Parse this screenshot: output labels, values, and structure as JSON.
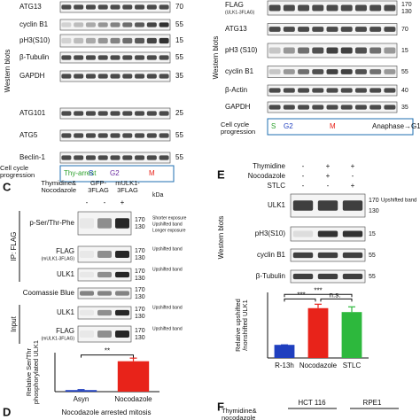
{
  "panel_a": {
    "side_label": "Western blots",
    "rows": [
      {
        "label": "ATG13",
        "kda": [
          70
        ]
      },
      {
        "label": "cyclin B1",
        "kda": [
          55
        ]
      },
      {
        "label": "pH3(S10)",
        "kda": [
          15
        ]
      },
      {
        "label": "β-Tubulin",
        "kda": [
          55
        ]
      },
      {
        "label": "GAPDH",
        "kda": [
          35
        ]
      },
      {
        "label": "ATG101",
        "kda": [
          25
        ]
      },
      {
        "label": "ATG5",
        "kda": [
          55
        ]
      },
      {
        "label": "Beclin-1",
        "kda": [
          55
        ]
      }
    ],
    "progression": {
      "label": "Cell cycle progression",
      "phases": [
        "Thy-arrest",
        "S",
        "G2",
        "M"
      ]
    }
  },
  "panel_b": {
    "side_label": "Western blots",
    "rows": [
      {
        "label": "FLAG",
        "sublabel": "(ULK1-3FLAG)",
        "kda": [
          170,
          130
        ]
      },
      {
        "label": "ATG13",
        "kda": [
          70
        ]
      },
      {
        "label": "pH3 (S10)",
        "kda": [
          15
        ]
      },
      {
        "label": "cyclin B1",
        "kda": [
          55
        ]
      },
      {
        "label": "β-Actin",
        "kda": [
          40
        ]
      },
      {
        "label": "GAPDH",
        "kda": [
          35
        ]
      }
    ],
    "progression": {
      "label": "Cell cycle progression",
      "phases": [
        "S",
        "G2",
        "M",
        "Anaphase→G1"
      ]
    }
  },
  "panel_c": {
    "letter": "C",
    "treatment": "Thymidine& Nocodazole",
    "columns": [
      "GFP-3FLAG",
      "mULK1-3FLAG"
    ],
    "signs": [
      "-",
      "-",
      "+"
    ],
    "kda_unit": "kDa",
    "groups": [
      "IP: FLAG",
      "Input"
    ],
    "rows": [
      {
        "label": "p-Ser/Thr-Phe",
        "kda": [
          170,
          130
        ],
        "notes": [
          "Shorter exposure",
          "Upshifted band",
          "Longer exposure"
        ]
      },
      {
        "label": "FLAG",
        "sublabel": "(mULK1-3FLAG)",
        "kda": [
          170,
          130
        ],
        "notes": [
          "Upshifted band"
        ]
      },
      {
        "label": "ULK1",
        "kda": [
          170,
          130
        ],
        "notes": [
          "Upshifted band"
        ]
      },
      {
        "label": "Coomassie Blue",
        "kda": [
          170,
          130
        ],
        "notes": []
      },
      {
        "label": "ULK1",
        "kda": [
          170,
          130
        ],
        "notes": [
          "Upshifted band"
        ]
      },
      {
        "label": "FLAG",
        "sublabel": "(mULK1-3FLAG)",
        "kda": [
          170,
          130
        ],
        "notes": [
          "Upshifted band"
        ]
      }
    ],
    "chart": {
      "type": "bar",
      "y_label": "Relative Ser/Thr phosphorylated ULK1",
      "categories": [
        "Asyn",
        "Nocodazole"
      ],
      "values": [
        10,
        195
      ],
      "errors": [
        3,
        20
      ],
      "colors": [
        "#1f3fbf",
        "#e8231a"
      ],
      "ylim": [
        0,
        250
      ],
      "significance": [
        "**"
      ]
    }
  },
  "panel_d": {
    "letter": "D",
    "title": "Nocodazole arrested mitosis"
  },
  "panel_e": {
    "letter": "E",
    "treatments": [
      {
        "name": "Thymidine",
        "signs": [
          "-",
          "+",
          "+"
        ]
      },
      {
        "name": "Nocodazole",
        "signs": [
          "-",
          "+",
          "-"
        ]
      },
      {
        "name": "STLC",
        "signs": [
          "-",
          "-",
          "+"
        ]
      }
    ],
    "side_label": "Western blots",
    "rows": [
      {
        "label": "ULK1",
        "kda": [
          170,
          130
        ],
        "notes": [
          "Upshifted band"
        ]
      },
      {
        "label": "pH3(S10)",
        "kda": [
          15
        ],
        "notes": []
      },
      {
        "label": "cyclin B1",
        "kda": [
          55
        ],
        "notes": []
      },
      {
        "label": "β-Tubulin",
        "kda": [
          55
        ],
        "notes": []
      }
    ],
    "chart": {
      "type": "bar",
      "y_label": "Relative upshifted /nonshifted ULK1",
      "categories": [
        "R-13h",
        "Nocodazole",
        "STLC"
      ],
      "values": [
        1,
        3.8,
        3.5
      ],
      "errors": [
        0,
        0.3,
        0.4
      ],
      "colors": [
        "#1f3fbf",
        "#e8231a",
        "#2db83d"
      ],
      "ylim": [
        0,
        5
      ],
      "significance": [
        "***",
        "n.s.",
        "***"
      ]
    }
  },
  "panel_f": {
    "letter": "F",
    "treatment": "Thymidine& nocodazole",
    "columns": [
      "HCT 116",
      "RPE1"
    ]
  }
}
